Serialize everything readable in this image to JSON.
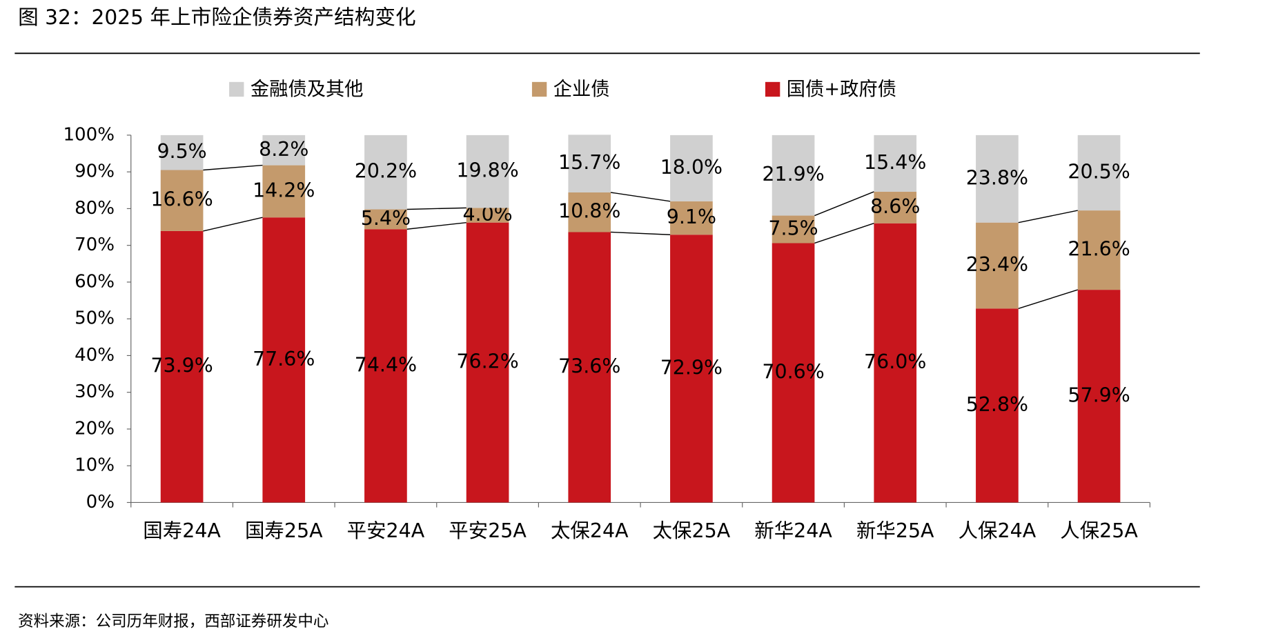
{
  "chart_data": {
    "type": "stacked-bar",
    "title": "图 32：2025 年上市险企债券资产结构变化",
    "source": "资料来源：公司历年财报，西部证券研发中心",
    "categories": [
      "国寿24A",
      "国寿25A",
      "平安24A",
      "平安25A",
      "太保24A",
      "太保25A",
      "新华24A",
      "新华25A",
      "人保24A",
      "人保25A"
    ],
    "series": [
      {
        "name": "国债+政府债",
        "color": "#c8161d",
        "values": [
          73.9,
          77.6,
          74.4,
          76.2,
          73.6,
          72.9,
          70.6,
          76.0,
          52.8,
          57.9
        ],
        "value_labels": [
          "73.9%",
          "77.6%",
          "74.4%",
          "76.2%",
          "73.6%",
          "72.9%",
          "70.6%",
          "76.0%",
          "52.8%",
          "57.9%"
        ]
      },
      {
        "name": "企业债",
        "color": "#c49a6c",
        "values": [
          16.6,
          14.2,
          5.4,
          4.0,
          10.8,
          9.1,
          7.5,
          8.6,
          23.4,
          21.6
        ],
        "value_labels": [
          "16.6%",
          "14.2%",
          "5.4%",
          "4.0%",
          "10.8%",
          "9.1%",
          "7.5%",
          "8.6%",
          "23.4%",
          "21.6%"
        ]
      },
      {
        "name": "金融债及其他",
        "color": "#d0d0d0",
        "values": [
          9.5,
          8.2,
          20.2,
          19.8,
          15.7,
          18.0,
          21.9,
          15.4,
          23.8,
          20.5
        ],
        "value_labels": [
          "9.5%",
          "8.2%",
          "20.2%",
          "19.8%",
          "15.7%",
          "18.0%",
          "21.9%",
          "15.4%",
          "23.8%",
          "20.5%"
        ]
      }
    ],
    "ylim": [
      0,
      100
    ],
    "yticks": [
      {
        "value": 0,
        "label": "0%"
      },
      {
        "value": 10,
        "label": "10%"
      },
      {
        "value": 20,
        "label": "20%"
      },
      {
        "value": 30,
        "label": "30%"
      },
      {
        "value": 40,
        "label": "40%"
      },
      {
        "value": 50,
        "label": "50%"
      },
      {
        "value": 60,
        "label": "60%"
      },
      {
        "value": 70,
        "label": "70%"
      },
      {
        "value": 80,
        "label": "80%"
      },
      {
        "value": 90,
        "label": "90%"
      },
      {
        "value": 100,
        "label": "100%"
      }
    ],
    "grid": false
  }
}
